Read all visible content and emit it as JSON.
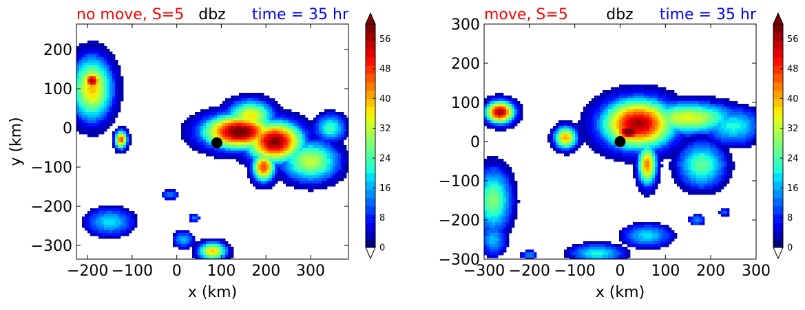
{
  "chart_data": [
    {
      "type": "contourf",
      "title_left": "no move, S=5",
      "title_center": "dbz",
      "title_right": "time = 35 hr",
      "title_left_color": "#ff0000",
      "title_center_color": "#000000",
      "title_right_color": "#0000ff",
      "xlabel": "x (km)",
      "ylabel": "y (km)",
      "xlim": [
        -225,
        385
      ],
      "ylim": [
        -335,
        265
      ],
      "xticks": [
        -200,
        -100,
        0,
        100,
        200,
        300
      ],
      "xtick_labels": [
        "−200",
        "−100",
        "0",
        "100",
        "200",
        "300"
      ],
      "yticks": [
        -300,
        -200,
        -100,
        0,
        100,
        200
      ],
      "ytick_labels": [
        "−300",
        "−200",
        "−100",
        "0",
        "100",
        "200"
      ],
      "center_marker": {
        "x": 90,
        "y": -38
      },
      "blobs": [
        {
          "x": 140,
          "y": -10,
          "rx": 70,
          "ry": 38,
          "peak": 50
        },
        {
          "x": 220,
          "y": -35,
          "rx": 55,
          "ry": 45,
          "peak": 48
        },
        {
          "x": 300,
          "y": -85,
          "rx": 55,
          "ry": 45,
          "peak": 24
        },
        {
          "x": 165,
          "y": 30,
          "rx": 45,
          "ry": 35,
          "peak": 28
        },
        {
          "x": 195,
          "y": -100,
          "rx": 22,
          "ry": 32,
          "peak": 38
        },
        {
          "x": 345,
          "y": 0,
          "rx": 30,
          "ry": 30,
          "peak": 16
        },
        {
          "x": -190,
          "y": 100,
          "rx": 40,
          "ry": 70,
          "peak": 30
        },
        {
          "x": -190,
          "y": 120,
          "rx": 18,
          "ry": 22,
          "peak": 46
        },
        {
          "x": -125,
          "y": -30,
          "rx": 12,
          "ry": 20,
          "peak": 38
        },
        {
          "x": -150,
          "y": -240,
          "rx": 45,
          "ry": 30,
          "peak": 12
        },
        {
          "x": 80,
          "y": -315,
          "rx": 28,
          "ry": 20,
          "peak": 30
        },
        {
          "x": 15,
          "y": -285,
          "rx": 20,
          "ry": 18,
          "peak": 10
        },
        {
          "x": -15,
          "y": -170,
          "rx": 16,
          "ry": 10,
          "peak": 8
        },
        {
          "x": 40,
          "y": -230,
          "rx": 10,
          "ry": 8,
          "peak": 8
        }
      ]
    },
    {
      "type": "contourf",
      "title_left": "move, S=5",
      "title_center": "dbz",
      "title_right": "time = 35 hr",
      "title_left_color": "#ff0000",
      "title_center_color": "#000000",
      "title_right_color": "#0000ff",
      "xlabel": "x (km)",
      "ylabel": "",
      "xlim": [
        -300,
        300
      ],
      "ylim": [
        -300,
        300
      ],
      "xticks": [
        -300,
        -200,
        -100,
        0,
        100,
        200,
        300
      ],
      "xtick_labels": [
        "−300",
        "−200",
        "−100",
        "0",
        "100",
        "200",
        "300"
      ],
      "yticks": [
        -300,
        -200,
        -100,
        0,
        100,
        200,
        300
      ],
      "ytick_labels": [
        "−300",
        "−200",
        "−100",
        "0",
        "100",
        "200",
        "300"
      ],
      "center_marker": {
        "x": 0,
        "y": 0
      },
      "blobs": [
        {
          "x": 40,
          "y": 45,
          "rx": 70,
          "ry": 55,
          "peak": 46
        },
        {
          "x": 20,
          "y": 25,
          "rx": 30,
          "ry": 22,
          "peak": 52
        },
        {
          "x": 150,
          "y": 60,
          "rx": 90,
          "ry": 35,
          "peak": 26
        },
        {
          "x": 250,
          "y": 40,
          "rx": 55,
          "ry": 40,
          "peak": 14
        },
        {
          "x": 180,
          "y": -60,
          "rx": 45,
          "ry": 50,
          "peak": 18
        },
        {
          "x": 60,
          "y": -60,
          "rx": 18,
          "ry": 45,
          "peak": 34
        },
        {
          "x": -265,
          "y": 75,
          "rx": 28,
          "ry": 25,
          "peak": 46
        },
        {
          "x": -120,
          "y": 10,
          "rx": 22,
          "ry": 25,
          "peak": 32
        },
        {
          "x": -280,
          "y": -150,
          "rx": 35,
          "ry": 70,
          "peak": 20
        },
        {
          "x": -280,
          "y": -250,
          "rx": 25,
          "ry": 35,
          "peak": 10
        },
        {
          "x": -50,
          "y": -285,
          "rx": 50,
          "ry": 20,
          "peak": 14
        },
        {
          "x": 60,
          "y": -240,
          "rx": 45,
          "ry": 25,
          "peak": 12
        },
        {
          "x": 170,
          "y": -200,
          "rx": 15,
          "ry": 12,
          "peak": 8
        },
        {
          "x": -200,
          "y": -290,
          "rx": 15,
          "ry": 10,
          "peak": 8
        },
        {
          "x": 230,
          "y": -180,
          "rx": 10,
          "ry": 8,
          "peak": 6
        }
      ]
    }
  ],
  "colorbar": {
    "min": 0,
    "max": 60,
    "step": 2,
    "tick_labels": [
      "0",
      "8",
      "16",
      "24",
      "32",
      "40",
      "48",
      "56"
    ],
    "tick_values": [
      0,
      8,
      16,
      24,
      32,
      40,
      48,
      56
    ],
    "extend": "both",
    "colors": [
      "#00007f",
      "#0000b2",
      "#0000e5",
      "#0014ff",
      "#0040ff",
      "#0068ff",
      "#0090ff",
      "#00b8ff",
      "#00e0fa",
      "#1fffd7",
      "#3fffb7",
      "#5fff97",
      "#7fff77",
      "#9fff57",
      "#bfff37",
      "#dfff17",
      "#ffe800",
      "#ffc400",
      "#ff9f00",
      "#ff7b00",
      "#ff5600",
      "#ff3200",
      "#ff0e00",
      "#e80000",
      "#c40000",
      "#a00000",
      "#7f0000"
    ],
    "under_color": "#ffffff",
    "over_color": "#7f0000"
  }
}
